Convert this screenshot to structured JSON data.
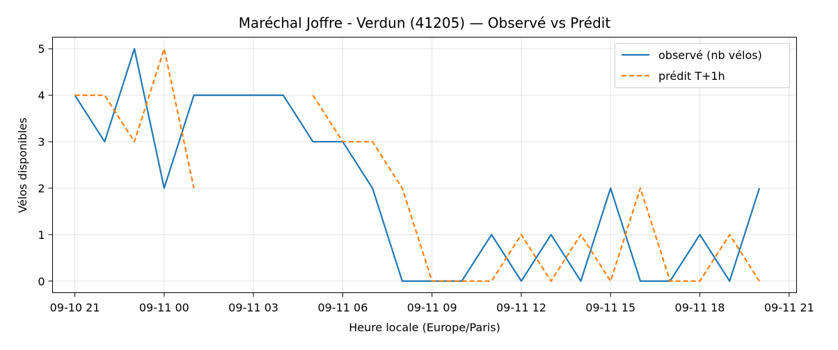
{
  "chart_data": {
    "type": "line",
    "title": "Maréchal Joffre - Verdun (41205) — Observé vs Prédit",
    "xlabel": "Heure locale (Europe/Paris)",
    "ylabel": "Vélos disponibles",
    "xlim_hours": [
      -0.75,
      24.25
    ],
    "ylim": [
      -0.25,
      5.25
    ],
    "x_ticks": [
      {
        "h": 0,
        "label": "09-10 21"
      },
      {
        "h": 3,
        "label": "09-11 00"
      },
      {
        "h": 6,
        "label": "09-11 03"
      },
      {
        "h": 9,
        "label": "09-11 06"
      },
      {
        "h": 12,
        "label": "09-11 09"
      },
      {
        "h": 15,
        "label": "09-11 12"
      },
      {
        "h": 18,
        "label": "09-11 15"
      },
      {
        "h": 21,
        "label": "09-11 18"
      },
      {
        "h": 24,
        "label": "09-11 21"
      }
    ],
    "y_ticks": [
      0,
      1,
      2,
      3,
      4,
      5
    ],
    "grid": true,
    "legend_position": "top-right",
    "series": [
      {
        "name": "observé (nb vélos)",
        "color": "#1f77b4",
        "dash": "solid",
        "points": [
          [
            0,
            4
          ],
          [
            1,
            3
          ],
          [
            2,
            5
          ],
          [
            3,
            2
          ],
          [
            4,
            4
          ],
          [
            5,
            4
          ],
          [
            6,
            4
          ],
          [
            7,
            4
          ],
          [
            8,
            3
          ],
          [
            9,
            3
          ],
          [
            10,
            2
          ],
          [
            11,
            0
          ],
          [
            12,
            0
          ],
          [
            13,
            0
          ],
          [
            14,
            1
          ],
          [
            15,
            0
          ],
          [
            16,
            1
          ],
          [
            17,
            0
          ],
          [
            18,
            2
          ],
          [
            19,
            0
          ],
          [
            20,
            0
          ],
          [
            21,
            1
          ],
          [
            22,
            0
          ],
          [
            23,
            2
          ]
        ]
      },
      {
        "name": "prédit T+1h",
        "color": "#ff7f0e",
        "dash": "dashed",
        "segments": [
          [
            [
              0,
              4
            ],
            [
              1,
              4
            ],
            [
              2,
              3
            ],
            [
              3,
              5
            ],
            [
              4,
              2
            ]
          ],
          [
            [
              8,
              4
            ],
            [
              9,
              3
            ],
            [
              10,
              3
            ],
            [
              11,
              2
            ],
            [
              12,
              0
            ],
            [
              13,
              0
            ],
            [
              14,
              0
            ],
            [
              15,
              1
            ],
            [
              16,
              0
            ],
            [
              17,
              1
            ],
            [
              18,
              0
            ],
            [
              19,
              2
            ],
            [
              20,
              0
            ],
            [
              21,
              0
            ],
            [
              22,
              1
            ],
            [
              23,
              0
            ]
          ]
        ]
      }
    ]
  }
}
